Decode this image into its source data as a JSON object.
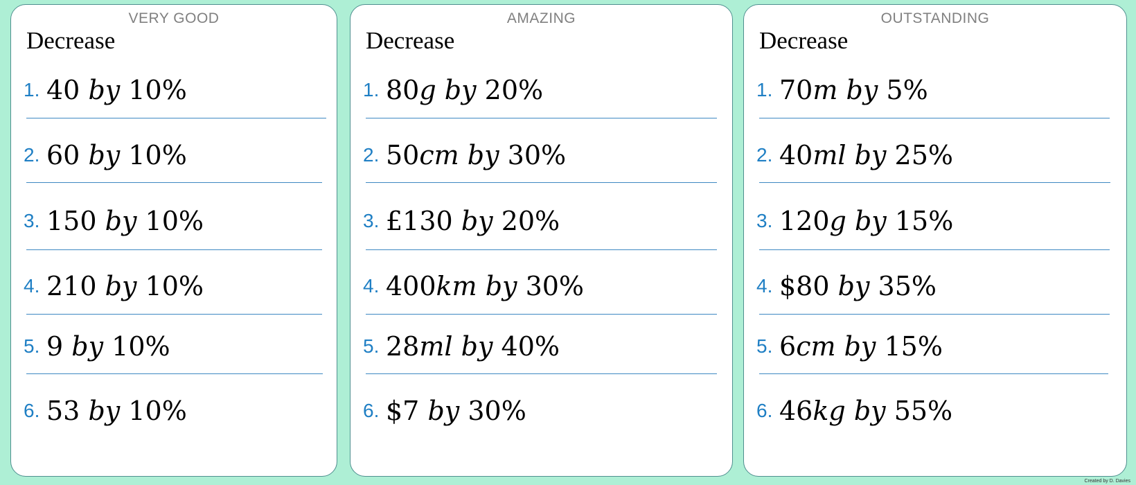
{
  "cards": [
    {
      "level": "VERY GOOD",
      "heading": "Decrease",
      "questions": [
        {
          "num": "1.",
          "amount": "40",
          "unit": "",
          "percent": "10%"
        },
        {
          "num": "2.",
          "amount": "60",
          "unit": "",
          "percent": "10%"
        },
        {
          "num": "3.",
          "amount": "150",
          "unit": "",
          "percent": "10%"
        },
        {
          "num": "4.",
          "amount": "210",
          "unit": "",
          "percent": "10%"
        },
        {
          "num": "5.",
          "amount": "9",
          "unit": "",
          "percent": "10%"
        },
        {
          "num": "6.",
          "amount": "53",
          "unit": "",
          "percent": "10%"
        }
      ]
    },
    {
      "level": "AMAZING",
      "heading": "Decrease",
      "questions": [
        {
          "num": "1.",
          "amount": "80",
          "unit": "g",
          "percent": "20%"
        },
        {
          "num": "2.",
          "amount": "50",
          "unit": "cm",
          "percent": "30%"
        },
        {
          "num": "3.",
          "amount": "£130",
          "unit": "",
          "percent": "20%"
        },
        {
          "num": "4.",
          "amount": "400",
          "unit": "km",
          "percent": "30%"
        },
        {
          "num": "5.",
          "amount": "28",
          "unit": "ml",
          "percent": "40%"
        },
        {
          "num": "6.",
          "amount": "$7",
          "unit": "",
          "percent": "30%"
        }
      ]
    },
    {
      "level": "OUTSTANDING",
      "heading": "Decrease",
      "questions": [
        {
          "num": "1.",
          "amount": "70",
          "unit": "m",
          "percent": "5%"
        },
        {
          "num": "2.",
          "amount": "40",
          "unit": "ml",
          "percent": "25%"
        },
        {
          "num": "3.",
          "amount": "120",
          "unit": "g",
          "percent": "15%"
        },
        {
          "num": "4.",
          "amount": "$80",
          "unit": "",
          "percent": "35%"
        },
        {
          "num": "5.",
          "amount": "6",
          "unit": "cm",
          "percent": "15%"
        },
        {
          "num": "6.",
          "amount": "46",
          "unit": "kg",
          "percent": "55%"
        }
      ]
    }
  ],
  "connector": "by",
  "credit": "Created by D. Davies"
}
